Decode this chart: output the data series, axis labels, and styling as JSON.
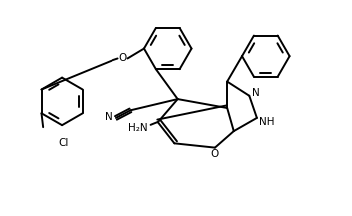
{
  "background_color": "#ffffff",
  "line_color": "#000000",
  "line_width": 1.4,
  "font_size": 7.5,
  "fig_width": 3.52,
  "fig_height": 2.16,
  "dpi": 100,
  "xlim": [
    0,
    10
  ],
  "ylim": [
    0,
    6.5
  ]
}
